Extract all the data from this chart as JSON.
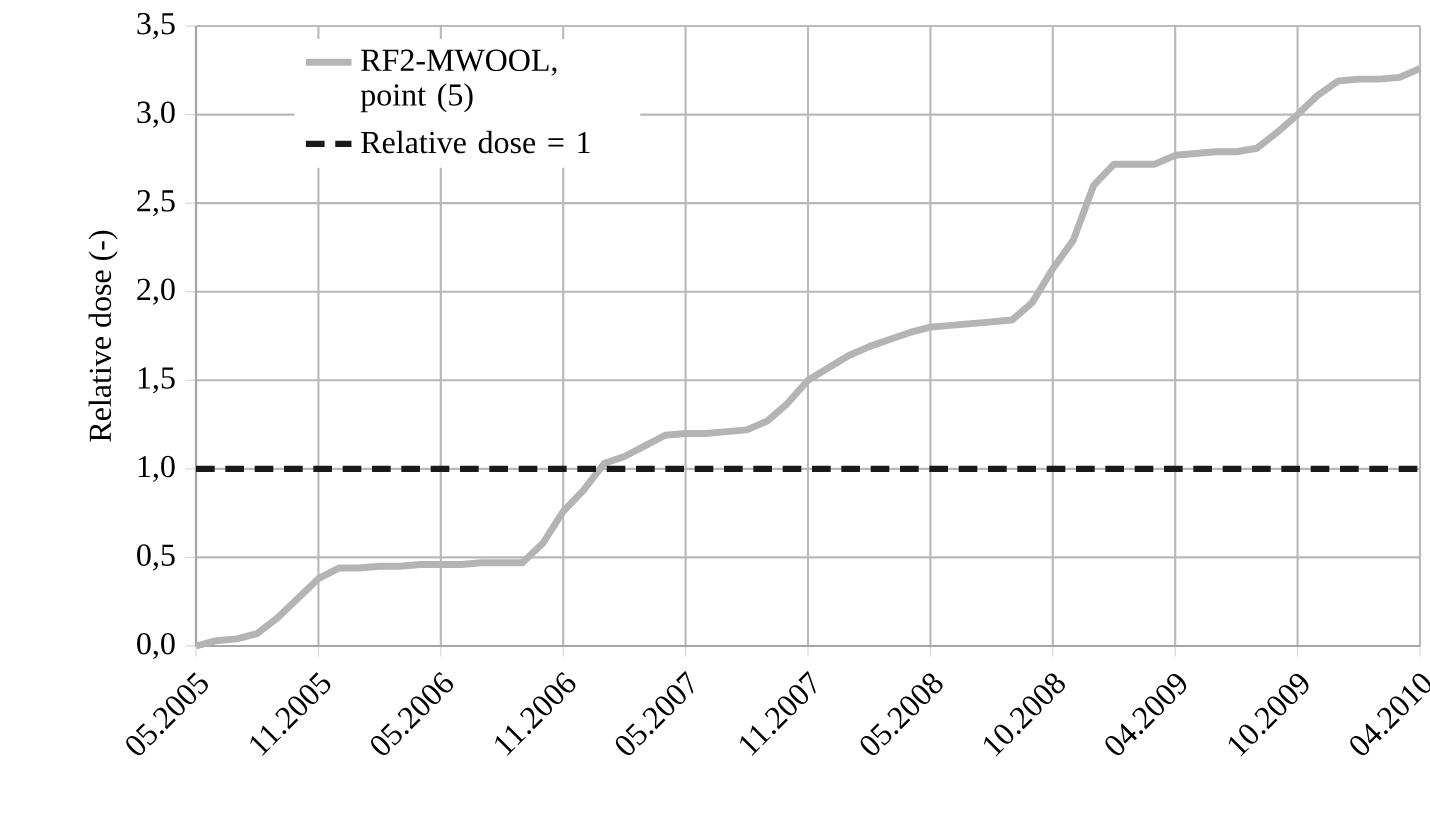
{
  "chart_data": {
    "type": "line",
    "ylabel": "Relative dose (-)",
    "categories": [
      "05.2005",
      null,
      null,
      null,
      null,
      null,
      "11.2005",
      null,
      null,
      null,
      null,
      null,
      "05.2006",
      null,
      null,
      null,
      null,
      null,
      "11.2006",
      null,
      null,
      null,
      null,
      null,
      "05.2007",
      null,
      null,
      null,
      null,
      null,
      "11.2007",
      null,
      null,
      null,
      null,
      null,
      "05.2008",
      null,
      null,
      null,
      null,
      null,
      "10.2008",
      null,
      null,
      null,
      null,
      null,
      "04.2009",
      null,
      null,
      null,
      null,
      null,
      "10.2009",
      null,
      null,
      null,
      null,
      null,
      "04.2010"
    ],
    "ylim": [
      0,
      3.5
    ],
    "yticks": [
      {
        "value": 0,
        "label": "0,0"
      },
      {
        "value": 0.5,
        "label": "0,5"
      },
      {
        "value": 1,
        "label": "1,0"
      },
      {
        "value": 1.5,
        "label": "1,5"
      },
      {
        "value": 2,
        "label": "2,0"
      },
      {
        "value": 2.5,
        "label": "2,5"
      },
      {
        "value": 3,
        "label": "3,0"
      },
      {
        "value": 3.5,
        "label": "3,5"
      }
    ],
    "series": [
      {
        "name": "RF2-MWOOL, point (5)",
        "color": "#b4b4b4",
        "values": [
          0,
          0.03,
          0.04,
          0.07,
          0.16,
          0.27,
          0.38,
          0.44,
          0.44,
          0.45,
          0.45,
          0.46,
          0.46,
          0.46,
          0.47,
          0.47,
          0.47,
          0.58,
          0.76,
          0.88,
          1.03,
          1.07,
          1.13,
          1.19,
          1.2,
          1.2,
          1.21,
          1.22,
          1.27,
          1.37,
          1.5,
          1.57,
          1.64,
          1.69,
          1.73,
          1.77,
          1.8,
          1.81,
          1.82,
          1.83,
          1.84,
          1.94,
          2.13,
          2.29,
          2.6,
          2.72,
          2.72,
          2.72,
          2.77,
          2.78,
          2.79,
          2.79,
          2.81,
          2.9,
          3.0,
          3.11,
          3.19,
          3.2,
          3.2,
          3.21,
          3.26
        ]
      }
    ],
    "ref_lines": [
      {
        "axis": "y",
        "value": 1,
        "label": "Relative dose = 1",
        "color": "#1a1a1a",
        "line_style": "dashed"
      }
    ],
    "grid": true,
    "legend": "top left",
    "marker": "none",
    "line_style": "solid"
  }
}
